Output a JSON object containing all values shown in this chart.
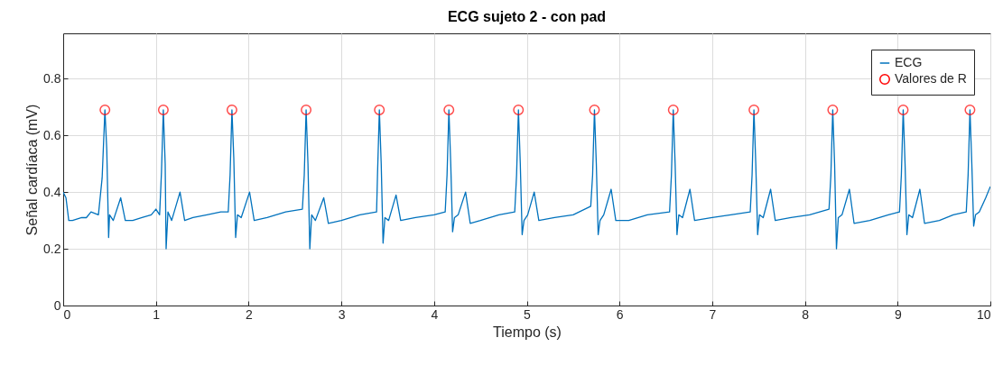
{
  "chart_data": {
    "type": "line",
    "title": "ECG sujeto 2 - con pad",
    "xlabel": "Tiempo (s)",
    "ylabel": "Señal cardíaca (mV)",
    "xlim": [
      0,
      10
    ],
    "xticks": [
      0,
      1,
      2,
      3,
      4,
      5,
      6,
      7,
      8,
      9,
      10
    ],
    "ylim": [
      0,
      0.96
    ],
    "yticks": [
      0,
      0.2,
      0.4,
      0.6,
      0.8
    ],
    "grid": true,
    "legend": "top right",
    "series": [
      {
        "name": "ECG",
        "color": "#0072bd",
        "x": [
          0,
          0.03,
          0.06,
          0.1,
          0.2,
          0.25,
          0.3,
          0.38,
          0.42,
          0.45,
          0.47,
          0.49,
          0.5,
          0.54,
          0.62,
          0.67,
          0.75,
          0.85,
          0.95,
          1.0,
          1.04,
          1.06,
          1.08,
          1.1,
          1.11,
          1.13,
          1.17,
          1.26,
          1.31,
          1.4,
          1.55,
          1.7,
          1.78,
          1.8,
          1.82,
          1.84,
          1.86,
          1.88,
          1.92,
          2.01,
          2.06,
          2.2,
          2.4,
          2.58,
          2.6,
          2.62,
          2.64,
          2.66,
          2.68,
          2.72,
          2.81,
          2.86,
          3.0,
          3.2,
          3.38,
          3.39,
          3.41,
          3.43,
          3.45,
          3.47,
          3.51,
          3.59,
          3.64,
          3.8,
          4.0,
          4.12,
          4.14,
          4.16,
          4.18,
          4.2,
          4.22,
          4.26,
          4.34,
          4.39,
          4.5,
          4.7,
          4.87,
          4.89,
          4.91,
          4.93,
          4.95,
          4.97,
          5.01,
          5.08,
          5.13,
          5.3,
          5.5,
          5.69,
          5.71,
          5.73,
          5.75,
          5.77,
          5.79,
          5.83,
          5.91,
          5.96,
          6.1,
          6.3,
          6.54,
          6.56,
          6.58,
          6.6,
          6.62,
          6.64,
          6.68,
          6.76,
          6.81,
          7.0,
          7.2,
          7.41,
          7.43,
          7.45,
          7.47,
          7.49,
          7.51,
          7.55,
          7.63,
          7.68,
          7.85,
          8.05,
          8.26,
          8.28,
          8.3,
          8.32,
          8.34,
          8.36,
          8.4,
          8.48,
          8.53,
          8.7,
          8.9,
          9.02,
          9.04,
          9.06,
          9.08,
          9.1,
          9.12,
          9.16,
          9.24,
          9.29,
          9.45,
          9.6,
          9.74,
          9.76,
          9.78,
          9.8,
          9.82,
          9.84,
          9.88,
          9.95,
          10.0
        ],
        "values": [
          0.4,
          0.38,
          0.3,
          0.3,
          0.31,
          0.31,
          0.33,
          0.32,
          0.45,
          0.69,
          0.55,
          0.24,
          0.32,
          0.3,
          0.38,
          0.3,
          0.3,
          0.31,
          0.32,
          0.34,
          0.32,
          0.47,
          0.69,
          0.5,
          0.2,
          0.33,
          0.3,
          0.4,
          0.3,
          0.31,
          0.32,
          0.33,
          0.33,
          0.46,
          0.69,
          0.52,
          0.24,
          0.32,
          0.31,
          0.4,
          0.3,
          0.31,
          0.33,
          0.34,
          0.46,
          0.69,
          0.5,
          0.2,
          0.32,
          0.3,
          0.38,
          0.29,
          0.3,
          0.32,
          0.33,
          0.46,
          0.69,
          0.5,
          0.22,
          0.31,
          0.3,
          0.39,
          0.3,
          0.31,
          0.32,
          0.33,
          0.46,
          0.69,
          0.5,
          0.26,
          0.31,
          0.32,
          0.4,
          0.29,
          0.3,
          0.32,
          0.33,
          0.46,
          0.69,
          0.5,
          0.25,
          0.3,
          0.32,
          0.4,
          0.3,
          0.31,
          0.32,
          0.35,
          0.46,
          0.69,
          0.5,
          0.25,
          0.3,
          0.32,
          0.41,
          0.3,
          0.3,
          0.32,
          0.33,
          0.46,
          0.69,
          0.5,
          0.25,
          0.32,
          0.31,
          0.41,
          0.3,
          0.31,
          0.32,
          0.33,
          0.46,
          0.69,
          0.5,
          0.25,
          0.32,
          0.31,
          0.41,
          0.3,
          0.31,
          0.32,
          0.34,
          0.46,
          0.69,
          0.5,
          0.2,
          0.31,
          0.32,
          0.41,
          0.29,
          0.3,
          0.32,
          0.33,
          0.46,
          0.69,
          0.5,
          0.25,
          0.32,
          0.31,
          0.41,
          0.29,
          0.3,
          0.32,
          0.33,
          0.46,
          0.69,
          0.5,
          0.28,
          0.32,
          0.33,
          0.38,
          0.42
        ]
      },
      {
        "name": "Valores de R",
        "type": "scatter",
        "marker": "circle",
        "color": "#ff0000",
        "x": [
          0.45,
          1.08,
          1.82,
          2.62,
          3.41,
          4.16,
          4.91,
          5.73,
          6.58,
          7.45,
          8.3,
          9.06,
          9.78
        ],
        "values": [
          0.69,
          0.69,
          0.69,
          0.69,
          0.69,
          0.69,
          0.69,
          0.69,
          0.69,
          0.69,
          0.69,
          0.69,
          0.69
        ]
      }
    ]
  }
}
